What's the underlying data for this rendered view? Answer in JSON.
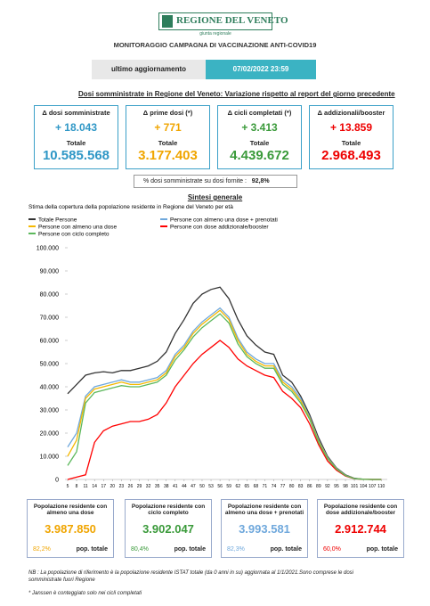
{
  "header": {
    "logo": "REGIONE DEL VENETO",
    "logo_sub": "giunta regionale",
    "title": "MONITORAGGIO CAMPAGNA DI VACCINAZIONE ANTI-COVID19"
  },
  "update": {
    "label": "ultimo aggiornamento",
    "value": "07/02/2022 23:59"
  },
  "section_title": "Dosi somministrate in Regione del Veneto: Variazione rispetto al report del giorno precedente",
  "cards": [
    {
      "label": "Δ dosi somministrate",
      "delta": "+ 18.043",
      "total_label": "Totale",
      "total": "10.585.568"
    },
    {
      "label": "Δ prime dosi (*)",
      "delta": "+ 771",
      "total_label": "Totale",
      "total": "3.177.403"
    },
    {
      "label": "Δ cicli completati (*)",
      "delta": "+ 3.413",
      "total_label": "Totale",
      "total": "4.439.672"
    },
    {
      "label": "Δ addizionali/booster",
      "delta": "+ 13.859",
      "total_label": "Totale",
      "total": "2.968.493"
    }
  ],
  "ratio": {
    "label": "% dosi somministrate su dosi fornite :",
    "value": "92,8%"
  },
  "summary_title": "Sintesi generale",
  "chart_data": {
    "type": "line",
    "title": "Stima della copertura della popolazione residente in Regione del Veneto per età",
    "x": [
      5,
      8,
      11,
      14,
      17,
      20,
      23,
      26,
      29,
      32,
      35,
      38,
      41,
      44,
      47,
      50,
      53,
      56,
      59,
      62,
      65,
      68,
      71,
      74,
      77,
      80,
      83,
      86,
      89,
      92,
      95,
      98,
      101,
      104,
      107,
      110
    ],
    "xlim": [
      5,
      112
    ],
    "xticks": [
      5,
      8,
      11,
      14,
      17,
      20,
      23,
      26,
      29,
      32,
      35,
      38,
      41,
      44,
      47,
      50,
      53,
      56,
      59,
      62,
      65,
      68,
      71,
      74,
      77,
      80,
      83,
      86,
      89,
      92,
      95,
      98,
      101,
      104,
      107,
      110
    ],
    "ylim": [
      0,
      100000
    ],
    "yticks": [
      0,
      {
        "value": 10000,
        "label": "10.000"
      },
      {
        "value": 20000,
        "label": "20.000"
      },
      {
        "value": 30000,
        "label": "30.000"
      },
      {
        "value": 40000,
        "label": "40.000"
      },
      {
        "value": 50000,
        "label": "50.000"
      },
      {
        "value": 60000,
        "label": "60.000"
      },
      {
        "value": 70000,
        "label": "70.000"
      },
      {
        "value": 80000,
        "label": "80.000"
      },
      {
        "value": 90000,
        "label": "90.000"
      },
      {
        "value": 100000,
        "label": "100.000"
      }
    ],
    "series": [
      {
        "name": "Totale Persone",
        "color": "#333333",
        "values": [
          37000,
          41000,
          45000,
          46000,
          46500,
          46000,
          47000,
          47000,
          48000,
          49000,
          51000,
          55000,
          63000,
          69000,
          76000,
          80000,
          82000,
          83000,
          78000,
          69000,
          62000,
          58000,
          55000,
          54000,
          45000,
          42000,
          36000,
          28000,
          18000,
          10000,
          5000,
          2000,
          500,
          100,
          0,
          0
        ]
      },
      {
        "name": "Persone con almeno una dose + prenotati",
        "color": "#6fa8dc",
        "values": [
          14000,
          20000,
          36000,
          40000,
          41000,
          42000,
          43000,
          42000,
          42000,
          43000,
          44000,
          47000,
          54000,
          58000,
          64000,
          68000,
          71000,
          74000,
          70000,
          61000,
          55000,
          52000,
          50000,
          50000,
          43000,
          40000,
          35000,
          27000,
          17000,
          9500,
          4800,
          1800,
          400,
          100,
          0,
          0
        ]
      },
      {
        "name": "Persone con almeno una dose",
        "color": "#f5b800",
        "values": [
          10000,
          17000,
          35000,
          39000,
          40000,
          41000,
          42000,
          41000,
          41000,
          42000,
          43000,
          46000,
          53000,
          57000,
          63000,
          67000,
          70000,
          73000,
          69000,
          60000,
          54000,
          51000,
          49000,
          49000,
          42000,
          39000,
          34000,
          26500,
          16500,
          9200,
          4600,
          1700,
          380,
          90,
          0,
          0
        ]
      },
      {
        "name": "Persone con dose addizionale/booster",
        "color": "#ff0000",
        "values": [
          0,
          1000,
          2000,
          16000,
          21000,
          23000,
          24000,
          25000,
          25000,
          26000,
          28000,
          33000,
          40000,
          45000,
          50000,
          54000,
          57000,
          60000,
          57000,
          52000,
          49000,
          47000,
          45000,
          44000,
          38000,
          35000,
          31000,
          24000,
          15000,
          8000,
          4000,
          1500,
          300,
          50,
          0,
          0
        ]
      },
      {
        "name": "Persone con ciclo completo",
        "color": "#5cb85c",
        "values": [
          6000,
          12000,
          33000,
          37500,
          38500,
          39500,
          40500,
          40000,
          40000,
          41000,
          42000,
          45000,
          51500,
          56000,
          61500,
          65500,
          68500,
          71500,
          67500,
          58500,
          53000,
          50000,
          48000,
          48000,
          41000,
          38000,
          33000,
          26000,
          16000,
          9000,
          4500,
          1650,
          360,
          80,
          0,
          0
        ]
      }
    ]
  },
  "bottom_cards": [
    {
      "label": "Popolazione residente con almeno una dose",
      "value": "3.987.850",
      "pct": "82,2%",
      "pop": "pop. totale"
    },
    {
      "label": "Popolazione residente con ciclo completo",
      "value": "3.902.047",
      "pct": "80,4%",
      "pop": "pop. totale"
    },
    {
      "label": "Popolazione residente con almeno una dose + prenotati",
      "value": "3.993.581",
      "pct": "82,3%",
      "pop": "pop. totale"
    },
    {
      "label": "Popolazione residente con dose addizionale/booster",
      "value": "2.912.744",
      "pct": "60,0%",
      "pop": "pop. totale"
    }
  ],
  "notes": [
    "NB : La popolazione di riferimento è la popolazione residente ISTAT totale (da 0 anni in su) aggiornata  al 1/1/2021.Sono comprese le dosi somministrate fuori Regione",
    "* Janssen è conteggiato solo nei cicli completati"
  ]
}
